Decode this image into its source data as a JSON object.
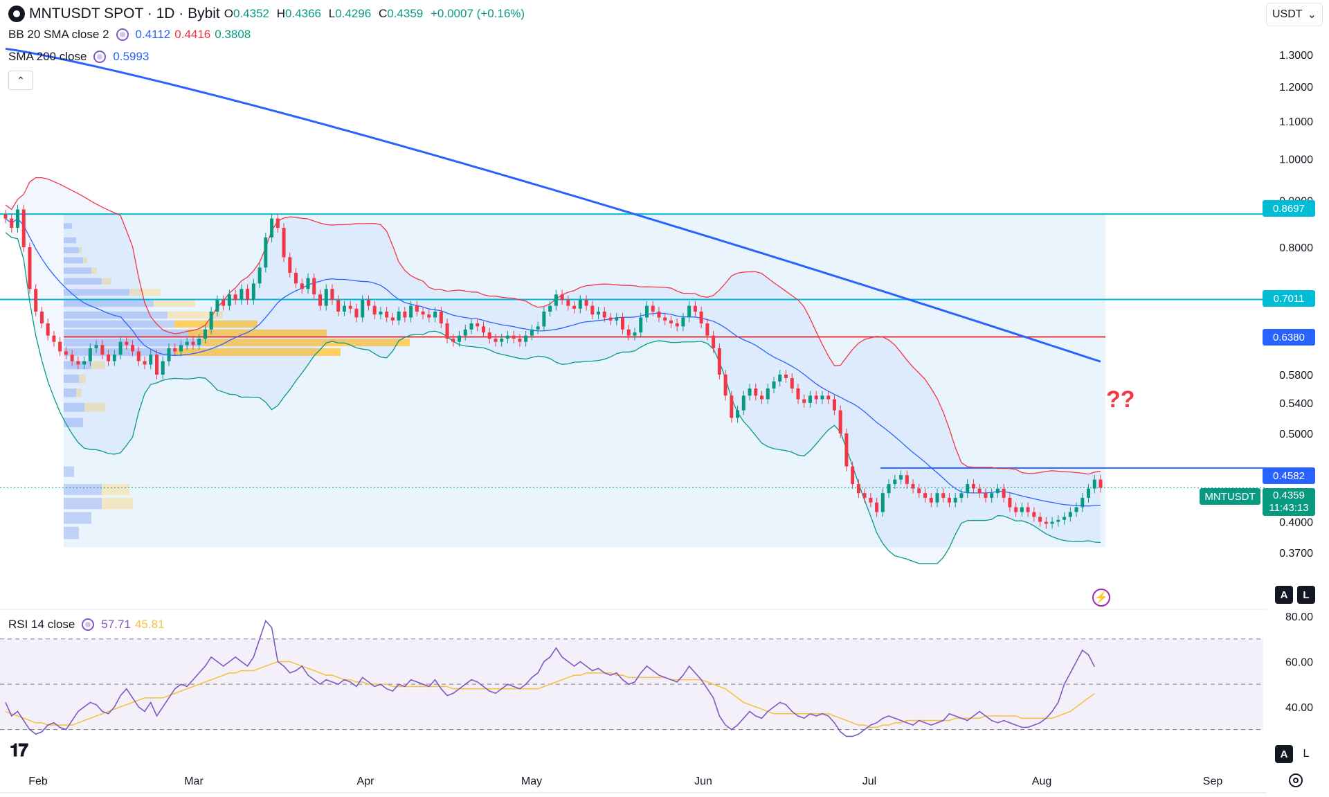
{
  "header": {
    "symbol_title": "MNTUSDT SPOT · 1D · Bybit",
    "ohlc": [
      {
        "label": "O",
        "value": "0.4352"
      },
      {
        "label": "H",
        "value": "0.4366"
      },
      {
        "label": "L",
        "value": "0.4296"
      },
      {
        "label": "C",
        "value": "0.4359"
      }
    ],
    "change": "+0.0007 (+0.16%)"
  },
  "indicators": {
    "bb": {
      "label": "BB 20 SMA close 2",
      "basis": "0.4112",
      "upper": "0.4416",
      "lower": "0.3808",
      "color_basis": "#2962ff",
      "color_upper": "#f23645",
      "color_lower": "#089981"
    },
    "sma": {
      "label": "SMA 200 close",
      "value": "0.5993",
      "color": "#2962ff"
    },
    "rsi": {
      "label": "RSI 14 close",
      "value": "57.71",
      "ma_value": "45.81",
      "color": "#7e57c2",
      "ma_color": "#f5c342"
    }
  },
  "toolbar": {
    "currency": "USDT",
    "collapse_icon": "chevron-up-icon",
    "currency_icon": "chevron-down-icon"
  },
  "annotations": {
    "question_marks": "??"
  },
  "price_tags": {
    "level_0869": "0.8697",
    "level_0701": "0.7011",
    "level_0638": "0.6380",
    "level_0458": "0.4582",
    "symbol": "MNTUSDT",
    "last_price": "0.4359",
    "countdown": "11:43:13"
  },
  "buttons": {
    "auto_a": "A",
    "log_l": "L",
    "rsi_a": "A",
    "rsi_l": "L"
  },
  "colors": {
    "up": "#089981",
    "down": "#f23645",
    "cyan_line": "#00bcd4",
    "red_line": "#e53935",
    "blue_line": "#2962ff",
    "range_bg": "#eaf4fd"
  },
  "chart_data": {
    "type": "candlestick",
    "title": "MNTUSDT SPOT · 1D · Bybit",
    "price_axis": {
      "scale": "log",
      "range": [
        0.35,
        1.38
      ],
      "ticks": [
        "1.3000",
        "1.2000",
        "1.1000",
        "1.0000",
        "0.9000",
        "0.8000",
        "0.5800",
        "0.5400",
        "0.5000",
        "0.4000",
        "0.3700"
      ]
    },
    "rsi_axis": {
      "range": [
        25,
        80
      ],
      "ticks": [
        "80.00",
        "60.00",
        "40.00"
      ],
      "bands": [
        30,
        50,
        70
      ]
    },
    "time_axis": {
      "labels": [
        "Feb",
        "Mar",
        "Apr",
        "May",
        "Jun",
        "Jul",
        "Aug",
        "Sep"
      ]
    },
    "horizontal_levels": [
      {
        "price": 0.8697,
        "color": "#00bcd4"
      },
      {
        "price": 0.7011,
        "color": "#00bcd4"
      },
      {
        "price": 0.638,
        "color": "#e53935"
      },
      {
        "price": 0.4582,
        "color": "#2962ff"
      }
    ],
    "closes": [
      0.86,
      0.84,
      0.88,
      0.8,
      0.72,
      0.68,
      0.66,
      0.64,
      0.63,
      0.615,
      0.61,
      0.6,
      0.595,
      0.6,
      0.62,
      0.625,
      0.61,
      0.6,
      0.61,
      0.63,
      0.625,
      0.615,
      0.6,
      0.595,
      0.61,
      0.58,
      0.6,
      0.62,
      0.615,
      0.625,
      0.63,
      0.625,
      0.635,
      0.65,
      0.68,
      0.7,
      0.69,
      0.71,
      0.7,
      0.72,
      0.7,
      0.73,
      0.76,
      0.82,
      0.86,
      0.84,
      0.78,
      0.75,
      0.73,
      0.72,
      0.74,
      0.71,
      0.69,
      0.72,
      0.7,
      0.68,
      0.69,
      0.685,
      0.67,
      0.7,
      0.69,
      0.675,
      0.68,
      0.67,
      0.665,
      0.68,
      0.67,
      0.69,
      0.68,
      0.675,
      0.67,
      0.68,
      0.66,
      0.635,
      0.63,
      0.64,
      0.65,
      0.66,
      0.655,
      0.645,
      0.635,
      0.63,
      0.635,
      0.64,
      0.635,
      0.63,
      0.64,
      0.65,
      0.655,
      0.68,
      0.69,
      0.71,
      0.7,
      0.69,
      0.685,
      0.7,
      0.69,
      0.675,
      0.68,
      0.67,
      0.665,
      0.67,
      0.65,
      0.64,
      0.645,
      0.67,
      0.69,
      0.68,
      0.67,
      0.665,
      0.66,
      0.655,
      0.67,
      0.69,
      0.68,
      0.66,
      0.64,
      0.62,
      0.58,
      0.55,
      0.52,
      0.53,
      0.55,
      0.56,
      0.55,
      0.545,
      0.56,
      0.57,
      0.58,
      0.575,
      0.56,
      0.545,
      0.54,
      0.55,
      0.545,
      0.55,
      0.545,
      0.53,
      0.5,
      0.46,
      0.44,
      0.43,
      0.425,
      0.42,
      0.41,
      0.43,
      0.44,
      0.445,
      0.45,
      0.44,
      0.435,
      0.43,
      0.425,
      0.42,
      0.43,
      0.425,
      0.42,
      0.425,
      0.43,
      0.44,
      0.435,
      0.43,
      0.425,
      0.43,
      0.435,
      0.425,
      0.415,
      0.41,
      0.415,
      0.41,
      0.405,
      0.4,
      0.398,
      0.4,
      0.402,
      0.405,
      0.41,
      0.415,
      0.425,
      0.435,
      0.445,
      0.4359
    ],
    "rsi_values": [
      42,
      36,
      38,
      34,
      30,
      28,
      29,
      32,
      33,
      31,
      30,
      34,
      38,
      40,
      42,
      41,
      38,
      37,
      40,
      45,
      48,
      44,
      40,
      38,
      42,
      36,
      40,
      44,
      48,
      50,
      49,
      52,
      55,
      58,
      62,
      60,
      58,
      60,
      62,
      60,
      58,
      62,
      70,
      78,
      75,
      60,
      58,
      55,
      56,
      58,
      54,
      52,
      50,
      52,
      51,
      50,
      52,
      51,
      49,
      53,
      51,
      49,
      50,
      48,
      47,
      50,
      49,
      52,
      51,
      50,
      49,
      52,
      48,
      45,
      46,
      48,
      50,
      52,
      51,
      49,
      47,
      46,
      48,
      50,
      49,
      48,
      50,
      53,
      55,
      60,
      62,
      66,
      62,
      60,
      58,
      60,
      58,
      56,
      57,
      55,
      54,
      55,
      52,
      50,
      51,
      55,
      58,
      56,
      54,
      53,
      52,
      51,
      54,
      58,
      55,
      52,
      48,
      44,
      36,
      32,
      30,
      32,
      35,
      38,
      36,
      35,
      38,
      40,
      42,
      41,
      38,
      36,
      35,
      37,
      36,
      37,
      36,
      33,
      29,
      27,
      27,
      28,
      30,
      32,
      33,
      35,
      36,
      35,
      34,
      33,
      32,
      34,
      33,
      32,
      33,
      34,
      37,
      36,
      35,
      34,
      36,
      38,
      36,
      34,
      33,
      34,
      33,
      32,
      31,
      31,
      32,
      33,
      35,
      38,
      42,
      50,
      55,
      60,
      65,
      63,
      57.71
    ],
    "rsi_ma_values": [
      38,
      37,
      36,
      35,
      34,
      33,
      33,
      32,
      32,
      32,
      32,
      32,
      33,
      34,
      35,
      36,
      37,
      38,
      39,
      40,
      41,
      42,
      43,
      44,
      44,
      44,
      44,
      45,
      46,
      47,
      48,
      49,
      50,
      51,
      52,
      53,
      54,
      55,
      55,
      56,
      56,
      56,
      57,
      58,
      59,
      60,
      60,
      60,
      59,
      58,
      57,
      56,
      55,
      54,
      54,
      53,
      52,
      52,
      51,
      51,
      50,
      50,
      50,
      50,
      49,
      49,
      49,
      49,
      49,
      49,
      49,
      49,
      49,
      49,
      48,
      48,
      48,
      48,
      48,
      48,
      48,
      48,
      48,
      48,
      48,
      48,
      48,
      48,
      48,
      49,
      50,
      51,
      52,
      53,
      54,
      54,
      55,
      55,
      55,
      55,
      55,
      54,
      54,
      53,
      53,
      53,
      53,
      53,
      53,
      53,
      52,
      52,
      52,
      52,
      52,
      52,
      51,
      50,
      49,
      48,
      46,
      44,
      42,
      41,
      40,
      39,
      38,
      37,
      37,
      37,
      37,
      37,
      37,
      37,
      37,
      37,
      37,
      36,
      35,
      34,
      33,
      32,
      32,
      31,
      31,
      32,
      32,
      33,
      33,
      34,
      34,
      34,
      34,
      34,
      34,
      34,
      34,
      35,
      35,
      35,
      35,
      35,
      36,
      36,
      36,
      36,
      36,
      36,
      35,
      35,
      35,
      35,
      35,
      35,
      36,
      37,
      38,
      40,
      42,
      44,
      45.81
    ]
  }
}
